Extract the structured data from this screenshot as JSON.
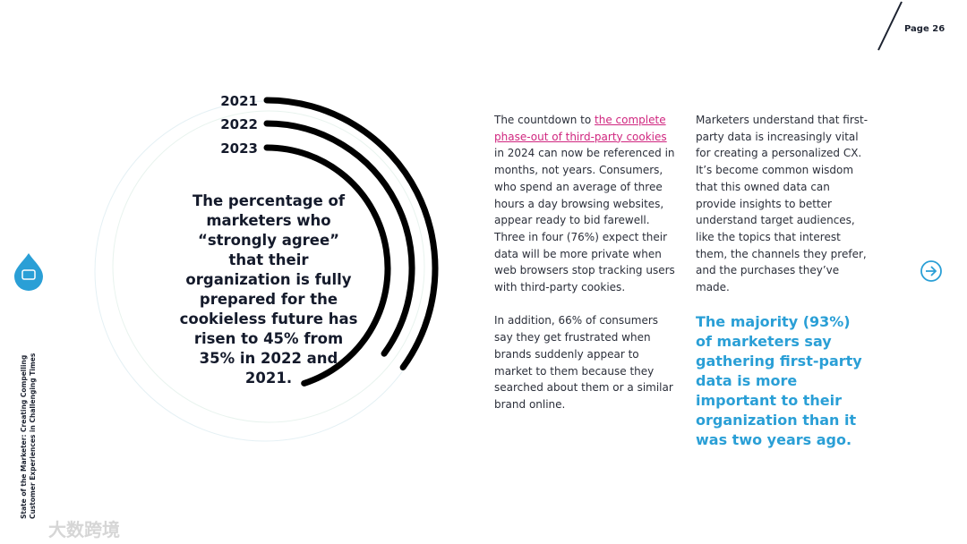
{
  "header": {
    "page": "Page 26"
  },
  "sidebar": {
    "line1": "State of the Marketer: Creating Compelling",
    "line2": "Customer Experiences in Challenging Times"
  },
  "watermark": "大数跨境",
  "arc_chart": {
    "type": "radial-bar",
    "categories": [
      "2021",
      "2022",
      "2023"
    ],
    "values": [
      35,
      35,
      45
    ],
    "color": "#000000",
    "caption": "The percentage of marketers who “strongly agree” that their organization is fully prepared for the cookieless future has risen to 45% from 35% in 2022 and 2021."
  },
  "column1": {
    "p1_before": "The countdown to ",
    "p1_link": "the complete phase-out of third-party cookies",
    "p1_after": " in 2024 can now be referenced in months, not years. Consumers, who spend an average of three hours a day browsing websites, appear ready to bid farewell. Three in four (76%) expect their data will be more private when web browsers stop tracking users with third-party cookies.",
    "p2": "In addition, 66% of consumers say they get frustrated when brands suddenly appear to market to them because they searched about them or a similar brand online."
  },
  "column2": {
    "p1": "Marketers understand that first-party data is increasingly vital for creating a personalized CX. It’s become common wisdom that this owned data can provide insights to better understand target audiences, like the topics that interest them, the channels they prefer, and the purchases they’ve made.",
    "quote": "The majority (93%) of marketers say gathering first-party data is more important to their organization than it was two years ago."
  }
}
